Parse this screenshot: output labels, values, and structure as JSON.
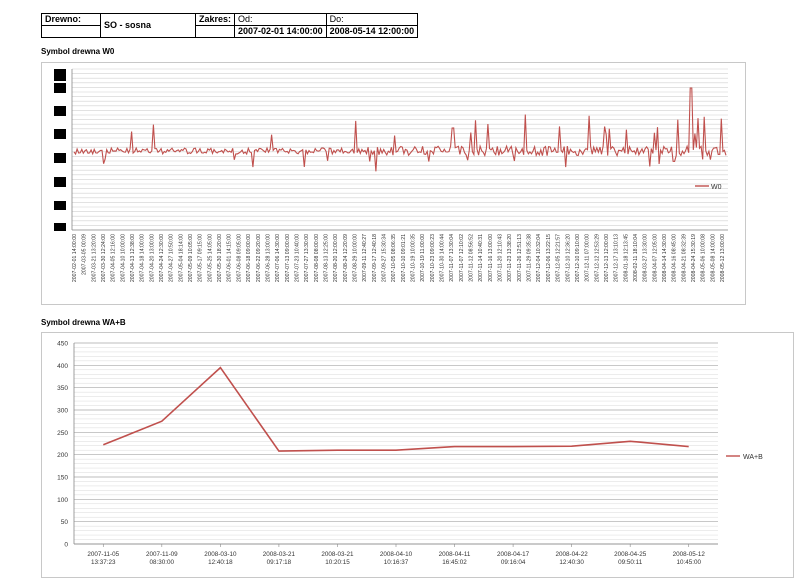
{
  "header": {
    "wood_label": "Drewno:",
    "wood_value": "SO - sosna",
    "range_label": "Zakres:",
    "from_label": "Od:",
    "from_value": "2007-02-01 14:00:00",
    "to_label": "Do:",
    "to_value": "2008-05-14 12:00:00"
  },
  "chart_data": [
    {
      "type": "line",
      "title": "Symbol drewna  W0",
      "series": [
        {
          "name": "W0",
          "color": "#c0504d"
        }
      ],
      "legend": "right",
      "grid": true,
      "x_tick_labels": [
        "2007-02-01 14:00:00",
        "2007-03-05 00:09",
        "2007-03-21 13:20:00",
        "2007-03-30 12:24:00",
        "2007-04-05 12:16:00",
        "2007-04-10 10:00:00",
        "2007-04-13 12:38:00",
        "2007-04-18 14:00:00",
        "2007-04-20 13:00:00",
        "2007-04-24 12:30:00",
        "2007-04-27 10:50:00",
        "2007-05-04 18:14:00",
        "2007-05-09 10:05:00",
        "2007-05-17 09:15:00",
        "2007-05-25 14:05:00",
        "2007-05-30 18:20:00",
        "2007-06-01 14:15:00",
        "2007-06-08 09:05:00",
        "2007-06-18 09:00:00",
        "2007-06-22 09:20:00",
        "2007-06-28 13:00:00",
        "2007-07-06 14:30:00",
        "2007-07-13 09:00:00",
        "2007-07-23 10:40:00",
        "2007-07-27 13:30:00",
        "2007-08-08 08:00:00",
        "2007-08-13 12:25:00",
        "2007-08-20 12:00:00",
        "2007-08-24 12:20:09",
        "2007-08-29 10:00:00",
        "2007-09-11 12:40:27",
        "2007-09-17 12:40:18",
        "2007-09-27 15:30:34",
        "2007-10-05 08:06:35",
        "2007-10-10 09:01:21",
        "2007-10-19 10:00:35",
        "2007-10-19 11:00:00",
        "2007-10-23 09:00:23",
        "2007-10-30 14:00:44",
        "2007-11-07 13:30:04",
        "2007-11-07 12:10:02",
        "2007-11-12 08:56:52",
        "2007-11-14 10:40:31",
        "2007-11-16 13:00:00",
        "2007-11-20 12:10:43",
        "2007-11-23 13:38:20",
        "2007-11-26 12:51:13",
        "2007-11-29 09:35:38",
        "2007-12-04 10:32:04",
        "2007-12-06 13:22:15",
        "2007-12-05 12:21:57",
        "2007-12-10 12:36:20",
        "2007-12-10 09:10:00",
        "2007-12-11 07:00:00",
        "2007-12-12 12:53:29",
        "2007-12-13 12:00:00",
        "2007-12-17 13:10:13",
        "2008-01-18 12:13:45",
        "2008-02-11 18:10:04",
        "2008-03-27 13:30:00",
        "2008-04-07 12:05:00",
        "2008-04-14 14:30:00",
        "2008-04-16 08:45:00",
        "2008-04-21 08:32:39",
        "2008-04-24 15:30:19",
        "2008-05-06 10:00:08",
        "2008-05-08 14:00:00",
        "2008-05-12 13:00:00"
      ]
    },
    {
      "type": "line",
      "title": "Symbol drewna  WA+B",
      "series": [
        {
          "name": "WA+B",
          "color": "#c0504d",
          "values": [
            222,
            275,
            395,
            208,
            210,
            210,
            218,
            218,
            219,
            230,
            218
          ]
        }
      ],
      "categories": [
        {
          "date": "2007-11-05",
          "time": "13:37:23"
        },
        {
          "date": "2007-11-09",
          "time": "08:30:00"
        },
        {
          "date": "2008-03-10",
          "time": "12:40:18"
        },
        {
          "date": "2008-03-21",
          "time": "09:17:18"
        },
        {
          "date": "2008-03-21",
          "time": "10:20:15"
        },
        {
          "date": "2008-04-10",
          "time": "10:16:37"
        },
        {
          "date": "2008-04-11",
          "time": "16:45:02"
        },
        {
          "date": "2008-04-17",
          "time": "09:16:04"
        },
        {
          "date": "2008-04-22",
          "time": "12:40:30"
        },
        {
          "date": "2008-04-25",
          "time": "09:50:11"
        },
        {
          "date": "2008-05-12",
          "time": "10:45:00"
        }
      ],
      "y_ticks": [
        0,
        50,
        100,
        150,
        200,
        250,
        300,
        350,
        400,
        450
      ],
      "ylim": [
        0,
        450
      ],
      "legend": "right",
      "grid": true
    }
  ]
}
